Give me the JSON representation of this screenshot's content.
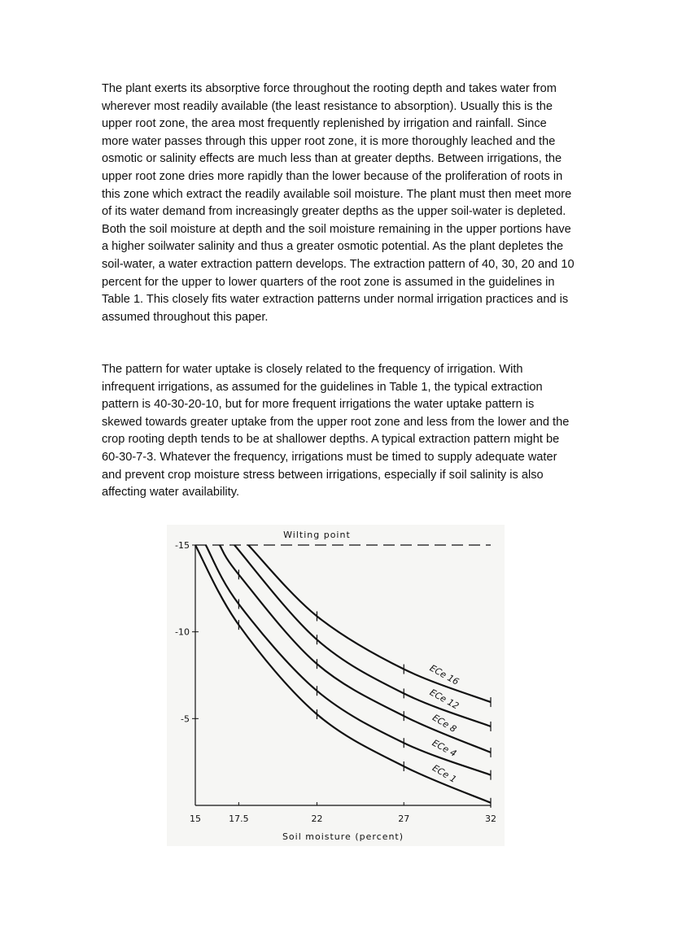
{
  "paragraphs": [
    "The plant exerts its absorptive force throughout the rooting depth and takes water from wherever most readily available (the least resistance to absorption). Usually this is the upper root zone, the area most frequently replenished by irrigation and rainfall. Since more water passes through this upper root zone, it is more thoroughly leached and the osmotic or salinity effects are much less than at greater depths. Between irrigations, the upper root zone dries more rapidly than the lower because of the proliferation of roots in this zone which extract the readily available soil moisture. The plant must then meet more of its water demand from increasingly greater depths as the upper soil-water is depleted. Both the soil moisture at depth and the soil moisture remaining in the upper portions have a higher soilwater salinity and thus a greater osmotic potential. As the plant depletes the soil-water, a water extraction pattern develops. The extraction pattern of 40, 30, 20 and 10 percent for the upper to lower quarters of the root zone is assumed in the guidelines in Table 1. This closely fits water extraction patterns under normal irrigation practices and is assumed throughout this paper.",
    "The pattern for water uptake is closely related to the frequency of irrigation. With infrequent irrigations, as assumed for the guidelines in Table 1, the typical extraction pattern is 40-30-20-10, but for more frequent irrigations the water uptake pattern is skewed towards greater uptake from the upper root zone and less from the lower and the crop rooting depth tends to be at shallower depths. A typical extraction pattern might be 60-30-7-3. Whatever the frequency, irrigations must be timed to supply adequate water and prevent crop moisture stress between irrigations, especially if soil salinity is also affecting water availability."
  ],
  "chart_data": {
    "type": "line",
    "xlabel": "Soil moisture (percent)",
    "xlim": [
      15,
      32
    ],
    "xticks": [
      15,
      17.5,
      22,
      27,
      32
    ],
    "ylim": [
      0,
      -15
    ],
    "yticks": [
      -15,
      -10,
      -5
    ],
    "reference_line": {
      "value": -15,
      "label": "Wilting point"
    },
    "color": "#111111",
    "series": [
      {
        "name": "ECe 16",
        "x": [
          18.05,
          22,
          27,
          32
        ],
        "y": [
          -15,
          -10.9,
          -7.85,
          -5.95
        ]
      },
      {
        "name": "ECe 12",
        "x": [
          17.25,
          22,
          27,
          32
        ],
        "y": [
          -15,
          -9.55,
          -6.45,
          -4.55
        ]
      },
      {
        "name": "ECe 8",
        "x": [
          16.4,
          17.5,
          22,
          27,
          32
        ],
        "y": [
          -15,
          -13.3,
          -8.15,
          -5.15,
          -3.05
        ]
      },
      {
        "name": "ECe 4",
        "x": [
          15.6,
          17.5,
          22,
          27,
          32
        ],
        "y": [
          -15,
          -11.6,
          -6.6,
          -3.6,
          -1.75
        ]
      },
      {
        "name": "ECe 1",
        "x": [
          15,
          17.5,
          22,
          27,
          32
        ],
        "y": [
          -15,
          -10.4,
          -5.25,
          -2.25,
          -0.15
        ]
      }
    ]
  }
}
